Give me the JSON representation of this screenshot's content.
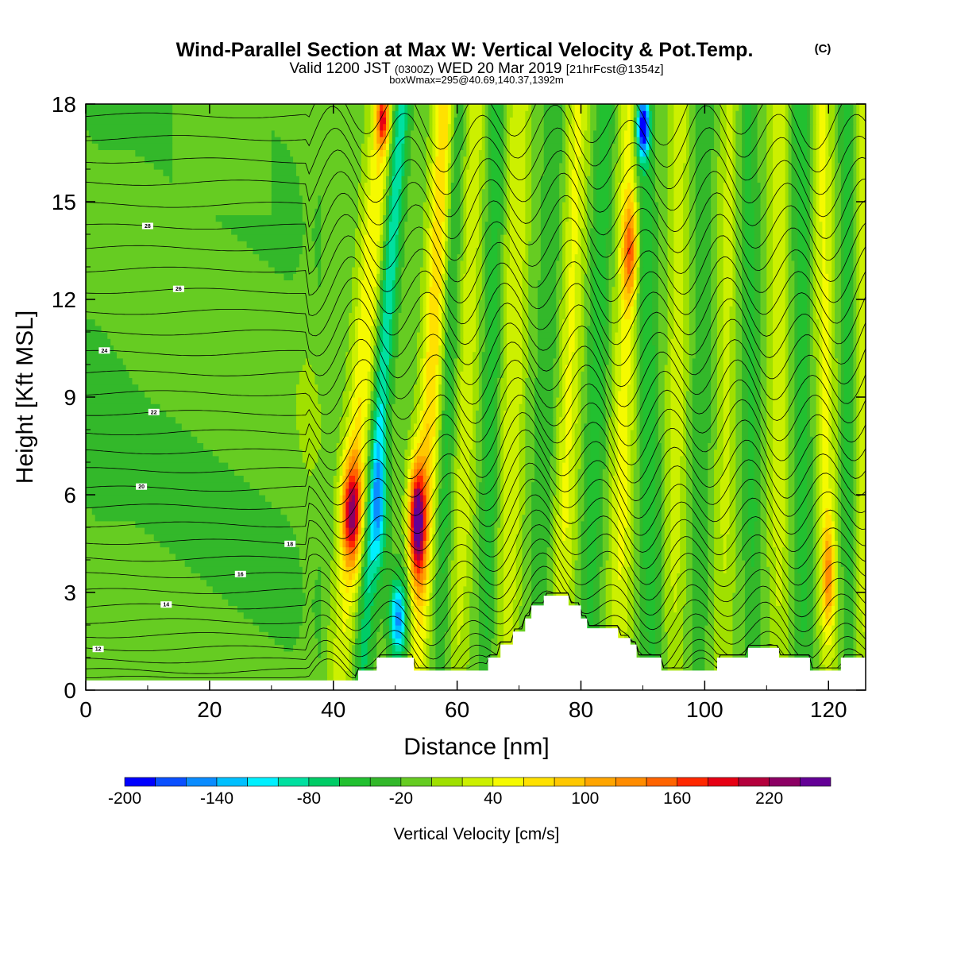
{
  "chart_data": {
    "type": "heatmap",
    "title": "Wind-Parallel Section at Max W: Vertical Velocity & Pot.Temp.",
    "title_mark": "(C)",
    "subtitle_a": "Valid 1200 JST",
    "subtitle_b": "(0300Z)",
    "subtitle_c": "WED 20 Mar 2019",
    "subtitle_d": "[21hrFcst@1354z]",
    "subtitle2": "boxWmax=295@40.69,140.37,1392m",
    "xlabel": "Distance [nm]",
    "ylabel": "Height [Kft MSL]",
    "xlim": [
      0,
      126
    ],
    "ylim": [
      0,
      18
    ],
    "x_ticks": [
      "0",
      "20",
      "40",
      "60",
      "80",
      "100",
      "120"
    ],
    "y_ticks": [
      "0",
      "3",
      "6",
      "9",
      "12",
      "15",
      "18"
    ],
    "colorbar": {
      "label": "Vertical Velocity [cm/s]",
      "tick_labels": [
        "-200",
        "-140",
        "-80",
        "-20",
        "40",
        "100",
        "160",
        "220"
      ],
      "range": [
        -200,
        260
      ],
      "step": 20,
      "colors": [
        "#0000ff",
        "#0a50ff",
        "#0a8cff",
        "#00c0ff",
        "#00f0ff",
        "#00e0a0",
        "#00cc66",
        "#22c030",
        "#33b82a",
        "#66cc22",
        "#a0e000",
        "#ccf000",
        "#f5fa00",
        "#ffe100",
        "#ffc800",
        "#ffa500",
        "#ff8c00",
        "#ff6400",
        "#ff2800",
        "#e60014",
        "#b4003c",
        "#8c0064",
        "#640096"
      ]
    },
    "theta_labels": [
      "12",
      "14",
      "16",
      "18",
      "20",
      "22",
      "24",
      "26",
      "28"
    ],
    "terrain_kft": [
      [
        0,
        0.3
      ],
      [
        20,
        0.3
      ],
      [
        40,
        0.3
      ],
      [
        44,
        0.3
      ],
      [
        44,
        0.6
      ],
      [
        47,
        0.6
      ],
      [
        47,
        1.0
      ],
      [
        53,
        1.0
      ],
      [
        53,
        0.6
      ],
      [
        65,
        0.6
      ],
      [
        65,
        1.0
      ],
      [
        67,
        1.0
      ],
      [
        67,
        1.4
      ],
      [
        69,
        1.4
      ],
      [
        69,
        1.8
      ],
      [
        71,
        1.8
      ],
      [
        71,
        2.2
      ],
      [
        72,
        2.2
      ],
      [
        72,
        2.6
      ],
      [
        74,
        2.6
      ],
      [
        74,
        2.9
      ],
      [
        78,
        2.9
      ],
      [
        78,
        2.6
      ],
      [
        80,
        2.6
      ],
      [
        80,
        2.2
      ],
      [
        81,
        2.2
      ],
      [
        81,
        1.9
      ],
      [
        86,
        1.9
      ],
      [
        86,
        1.6
      ],
      [
        88,
        1.6
      ],
      [
        88,
        1.4
      ],
      [
        89,
        1.4
      ],
      [
        89,
        1.0
      ],
      [
        93,
        1.0
      ],
      [
        93,
        0.6
      ],
      [
        102,
        0.6
      ],
      [
        102,
        1.0
      ],
      [
        107,
        1.0
      ],
      [
        107,
        1.3
      ],
      [
        112,
        1.3
      ],
      [
        112,
        1.0
      ],
      [
        117,
        1.0
      ],
      [
        117,
        0.6
      ],
      [
        122,
        0.6
      ],
      [
        122,
        1.0
      ],
      [
        126,
        1.0
      ],
      [
        126,
        0
      ]
    ],
    "w_features": [
      {
        "x": 43,
        "z": 5.5,
        "amp": 180,
        "sx": 1.6,
        "sz": 1.6
      },
      {
        "x": 53.5,
        "z": 5.2,
        "amp": 240,
        "sx": 1.3,
        "sz": 1.8
      },
      {
        "x": 50.5,
        "z": 2.2,
        "amp": -140,
        "sx": 1.4,
        "sz": 1.3
      },
      {
        "x": 47.5,
        "z": 5.5,
        "amp": -80,
        "sx": 1.2,
        "sz": 2.0
      },
      {
        "x": 90,
        "z": 17.3,
        "amp": -180,
        "sx": 1.0,
        "sz": 0.9
      },
      {
        "x": 88,
        "z": 13.5,
        "amp": 120,
        "sx": 1.2,
        "sz": 1.5
      },
      {
        "x": 48,
        "z": 17.5,
        "amp": 140,
        "sx": 1.0,
        "sz": 0.8
      },
      {
        "x": 120,
        "z": 3.5,
        "amp": 100,
        "sx": 1.0,
        "sz": 1.5
      }
    ]
  }
}
